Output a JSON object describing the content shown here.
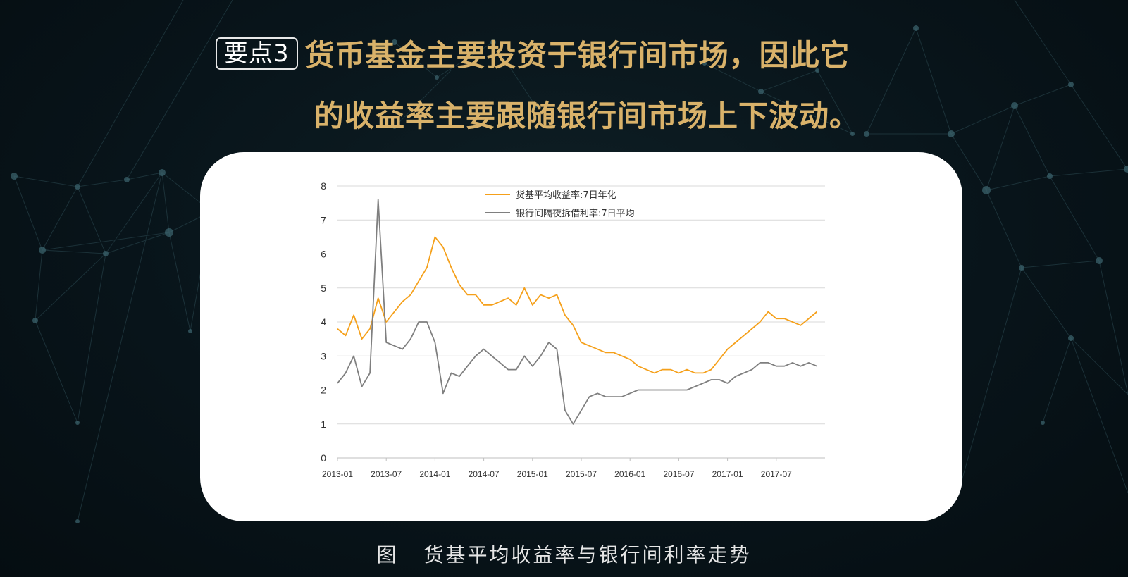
{
  "headline": {
    "badge": "要点3",
    "line1": "货币基金主要投资于银行间市场，因此它",
    "line2": "的收益率主要跟随银行间市场上下波动。"
  },
  "caption": {
    "figure_label": "图",
    "text": "货基平均收益率与银行间利率走势"
  },
  "colors": {
    "headline": "#d9b26a",
    "money_fund": "#f5a01a",
    "interbank": "#7f7f7f",
    "background": "#08141a"
  },
  "chart_data": {
    "type": "line",
    "title": "",
    "xlabel": "",
    "ylabel": "",
    "ylim": [
      0,
      8
    ],
    "yticks": [
      "0",
      "1",
      "2",
      "3",
      "4",
      "5",
      "6",
      "7",
      "8"
    ],
    "xticks": [
      "2013-01",
      "2013-07",
      "2014-01",
      "2014-07",
      "2015-01",
      "2015-07",
      "2016-01",
      "2016-07",
      "2017-01",
      "2017-07"
    ],
    "grid": "horizontal",
    "legend_position": "top-center",
    "series": [
      {
        "name": "货基平均收益率:7日年化",
        "color": "#f5a01a",
        "points": [
          [
            "2013-01",
            3.8
          ],
          [
            "2013-02",
            3.6
          ],
          [
            "2013-03",
            4.2
          ],
          [
            "2013-04",
            3.5
          ],
          [
            "2013-05",
            3.8
          ],
          [
            "2013-06",
            4.7
          ],
          [
            "2013-07",
            4.0
          ],
          [
            "2013-08",
            4.3
          ],
          [
            "2013-09",
            4.6
          ],
          [
            "2013-10",
            4.8
          ],
          [
            "2013-11",
            5.2
          ],
          [
            "2013-12",
            5.6
          ],
          [
            "2014-01",
            6.5
          ],
          [
            "2014-02",
            6.2
          ],
          [
            "2014-03",
            5.6
          ],
          [
            "2014-04",
            5.1
          ],
          [
            "2014-05",
            4.8
          ],
          [
            "2014-06",
            4.8
          ],
          [
            "2014-07",
            4.5
          ],
          [
            "2014-08",
            4.5
          ],
          [
            "2014-09",
            4.6
          ],
          [
            "2014-10",
            4.7
          ],
          [
            "2014-11",
            4.5
          ],
          [
            "2014-12",
            5.0
          ],
          [
            "2015-01",
            4.5
          ],
          [
            "2015-02",
            4.8
          ],
          [
            "2015-03",
            4.7
          ],
          [
            "2015-04",
            4.8
          ],
          [
            "2015-05",
            4.2
          ],
          [
            "2015-06",
            3.9
          ],
          [
            "2015-07",
            3.4
          ],
          [
            "2015-08",
            3.3
          ],
          [
            "2015-09",
            3.2
          ],
          [
            "2015-10",
            3.1
          ],
          [
            "2015-11",
            3.1
          ],
          [
            "2015-12",
            3.0
          ],
          [
            "2016-01",
            2.9
          ],
          [
            "2016-02",
            2.7
          ],
          [
            "2016-03",
            2.6
          ],
          [
            "2016-04",
            2.5
          ],
          [
            "2016-05",
            2.6
          ],
          [
            "2016-06",
            2.6
          ],
          [
            "2016-07",
            2.5
          ],
          [
            "2016-08",
            2.6
          ],
          [
            "2016-09",
            2.5
          ],
          [
            "2016-10",
            2.5
          ],
          [
            "2016-11",
            2.6
          ],
          [
            "2016-12",
            2.9
          ],
          [
            "2017-01",
            3.2
          ],
          [
            "2017-02",
            3.4
          ],
          [
            "2017-03",
            3.6
          ],
          [
            "2017-04",
            3.8
          ],
          [
            "2017-05",
            4.0
          ],
          [
            "2017-06",
            4.3
          ],
          [
            "2017-07",
            4.1
          ],
          [
            "2017-08",
            4.1
          ],
          [
            "2017-09",
            4.0
          ],
          [
            "2017-10",
            3.9
          ],
          [
            "2017-11",
            4.1
          ],
          [
            "2017-12",
            4.3
          ]
        ]
      },
      {
        "name": "银行间隔夜拆借利率:7日平均",
        "color": "#7f7f7f",
        "points": [
          [
            "2013-01",
            2.2
          ],
          [
            "2013-02",
            2.5
          ],
          [
            "2013-03",
            3.0
          ],
          [
            "2013-04",
            2.1
          ],
          [
            "2013-05",
            2.5
          ],
          [
            "2013-06",
            7.6
          ],
          [
            "2013-07",
            3.4
          ],
          [
            "2013-08",
            3.3
          ],
          [
            "2013-09",
            3.2
          ],
          [
            "2013-10",
            3.5
          ],
          [
            "2013-11",
            4.0
          ],
          [
            "2013-12",
            4.0
          ],
          [
            "2014-01",
            3.4
          ],
          [
            "2014-02",
            1.9
          ],
          [
            "2014-03",
            2.5
          ],
          [
            "2014-04",
            2.4
          ],
          [
            "2014-05",
            2.7
          ],
          [
            "2014-06",
            3.0
          ],
          [
            "2014-07",
            3.2
          ],
          [
            "2014-08",
            3.0
          ],
          [
            "2014-09",
            2.8
          ],
          [
            "2014-10",
            2.6
          ],
          [
            "2014-11",
            2.6
          ],
          [
            "2014-12",
            3.0
          ],
          [
            "2015-01",
            2.7
          ],
          [
            "2015-02",
            3.0
          ],
          [
            "2015-03",
            3.4
          ],
          [
            "2015-04",
            3.2
          ],
          [
            "2015-05",
            1.4
          ],
          [
            "2015-06",
            1.0
          ],
          [
            "2015-07",
            1.4
          ],
          [
            "2015-08",
            1.8
          ],
          [
            "2015-09",
            1.9
          ],
          [
            "2015-10",
            1.8
          ],
          [
            "2015-11",
            1.8
          ],
          [
            "2015-12",
            1.8
          ],
          [
            "2016-01",
            1.9
          ],
          [
            "2016-02",
            2.0
          ],
          [
            "2016-03",
            2.0
          ],
          [
            "2016-04",
            2.0
          ],
          [
            "2016-05",
            2.0
          ],
          [
            "2016-06",
            2.0
          ],
          [
            "2016-07",
            2.0
          ],
          [
            "2016-08",
            2.0
          ],
          [
            "2016-09",
            2.1
          ],
          [
            "2016-10",
            2.2
          ],
          [
            "2016-11",
            2.3
          ],
          [
            "2016-12",
            2.3
          ],
          [
            "2017-01",
            2.2
          ],
          [
            "2017-02",
            2.4
          ],
          [
            "2017-03",
            2.5
          ],
          [
            "2017-04",
            2.6
          ],
          [
            "2017-05",
            2.8
          ],
          [
            "2017-06",
            2.8
          ],
          [
            "2017-07",
            2.7
          ],
          [
            "2017-08",
            2.7
          ],
          [
            "2017-09",
            2.8
          ],
          [
            "2017-10",
            2.7
          ],
          [
            "2017-11",
            2.8
          ],
          [
            "2017-12",
            2.7
          ]
        ]
      }
    ]
  }
}
